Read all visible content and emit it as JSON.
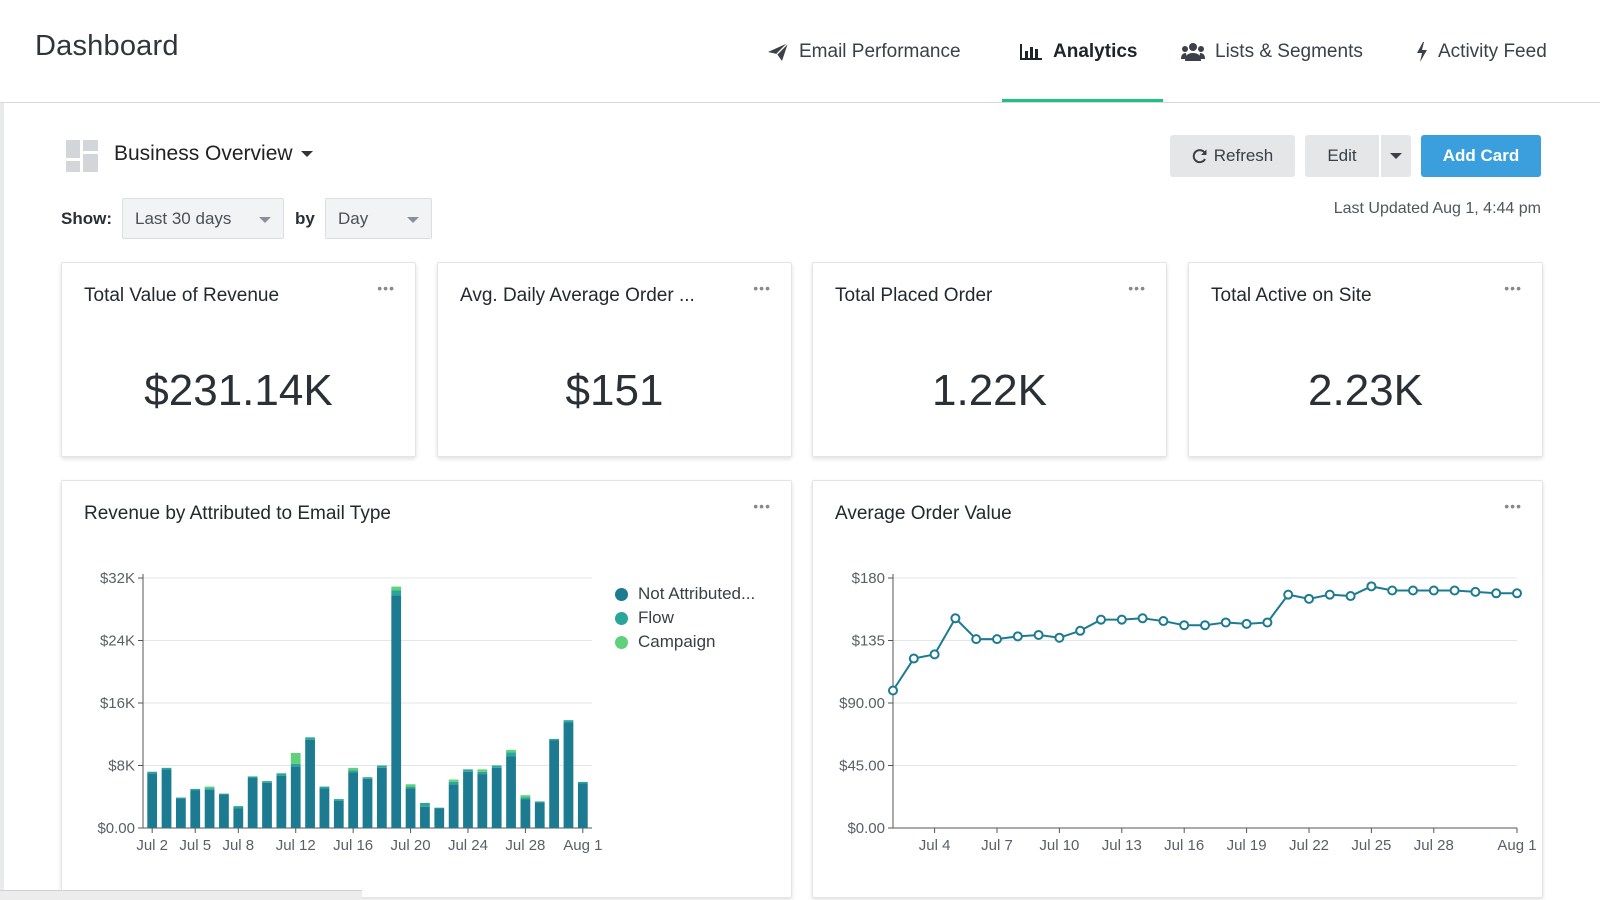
{
  "header": {
    "title": "Dashboard",
    "tabs": [
      {
        "label": "Email Performance",
        "icon": "paper-plane-icon"
      },
      {
        "label": "Analytics",
        "icon": "bar-chart-icon",
        "active": true
      },
      {
        "label": "Lists & Segments",
        "icon": "users-icon"
      },
      {
        "label": "Activity Feed",
        "icon": "lightning-icon"
      }
    ]
  },
  "toolbar": {
    "dashboard_name": "Business Overview",
    "refresh_label": "Refresh",
    "edit_label": "Edit",
    "add_card_label": "Add Card",
    "show_label": "Show:",
    "range_value": "Last 30 days",
    "by_label": "by",
    "granularity_value": "Day",
    "last_updated": "Last Updated Aug 1, 4:44 pm"
  },
  "colors": {
    "accent": "#1bc37e",
    "primary_button": "#3a9fdc",
    "not_attributed": "#1c7b91",
    "flow": "#2aa59a",
    "campaign": "#5fd17a",
    "line": "#1c7b91"
  },
  "metrics": [
    {
      "title": "Total Value of Revenue",
      "value": "$231.14K"
    },
    {
      "title": "Avg. Daily Average Order ...",
      "value": "$151"
    },
    {
      "title": "Total Placed Order",
      "value": "1.22K"
    },
    {
      "title": "Total Active on Site",
      "value": "2.23K"
    }
  ],
  "charts": {
    "revenue_title": "Revenue by Attributed to Email Type",
    "aov_title": "Average Order Value",
    "legend": [
      "Not Attributed...",
      "Flow",
      "Campaign"
    ]
  },
  "chart_data": [
    {
      "type": "bar",
      "stacked": true,
      "title": "Revenue by Attributed to Email Type",
      "ylim": [
        0,
        32000
      ],
      "y_ticks": [
        "$0.00",
        "$8K",
        "$16K",
        "$24K",
        "$32K"
      ],
      "y_tick_values": [
        0,
        8000,
        16000,
        24000,
        32000
      ],
      "x_tick_labels": [
        "Jul 2",
        "Jul 5",
        "Jul 8",
        "Jul 12",
        "Jul 16",
        "Jul 20",
        "Jul 24",
        "Jul 28",
        "Aug 1"
      ],
      "x_tick_indices": [
        0,
        3,
        6,
        10,
        14,
        18,
        22,
        26,
        30
      ],
      "categories": [
        "Jul 2",
        "Jul 3",
        "Jul 4",
        "Jul 5",
        "Jul 6",
        "Jul 7",
        "Jul 8",
        "Jul 9",
        "Jul 10",
        "Jul 11",
        "Jul 12",
        "Jul 13",
        "Jul 14",
        "Jul 15",
        "Jul 16",
        "Jul 17",
        "Jul 18",
        "Jul 19",
        "Jul 20",
        "Jul 21",
        "Jul 22",
        "Jul 23",
        "Jul 24",
        "Jul 25",
        "Jul 26",
        "Jul 27",
        "Jul 28",
        "Jul 29",
        "Jul 30",
        "Jul 31",
        "Aug 1"
      ],
      "series": [
        {
          "name": "Not Attributed...",
          "values": [
            7000,
            7500,
            3800,
            4800,
            4900,
            4300,
            2500,
            6400,
            5800,
            6700,
            7900,
            11300,
            5100,
            3500,
            7100,
            6300,
            7700,
            29800,
            5100,
            2700,
            2500,
            5600,
            7200,
            6900,
            7700,
            9200,
            3700,
            3300,
            11200,
            13500,
            5700
          ]
        },
        {
          "name": "Flow",
          "values": [
            200,
            200,
            100,
            200,
            200,
            100,
            300,
            200,
            200,
            300,
            300,
            300,
            200,
            200,
            300,
            200,
            300,
            600,
            200,
            500,
            100,
            300,
            300,
            300,
            300,
            500,
            200,
            100,
            200,
            300,
            200
          ]
        },
        {
          "name": "Campaign",
          "values": [
            0,
            0,
            0,
            0,
            200,
            0,
            0,
            0,
            0,
            0,
            1400,
            0,
            0,
            0,
            300,
            0,
            0,
            500,
            300,
            0,
            0,
            300,
            0,
            300,
            0,
            300,
            300,
            0,
            0,
            0,
            0
          ]
        }
      ],
      "legend": [
        "Not Attributed...",
        "Flow",
        "Campaign"
      ]
    },
    {
      "type": "line",
      "title": "Average Order Value",
      "ylim": [
        0,
        180
      ],
      "y_ticks": [
        "$0.00",
        "$45.00",
        "$90.00",
        "$135",
        "$180"
      ],
      "y_tick_values": [
        0,
        45,
        90,
        135,
        180
      ],
      "x_tick_labels": [
        "Jul 4",
        "Jul 7",
        "Jul 10",
        "Jul 13",
        "Jul 16",
        "Jul 19",
        "Jul 22",
        "Jul 25",
        "Jul 28",
        "Aug 1"
      ],
      "x_tick_indices": [
        2,
        5,
        8,
        11,
        14,
        17,
        20,
        23,
        26,
        30
      ],
      "categories": [
        "Jul 2",
        "Jul 3",
        "Jul 4",
        "Jul 5",
        "Jul 6",
        "Jul 7",
        "Jul 8",
        "Jul 9",
        "Jul 10",
        "Jul 11",
        "Jul 12",
        "Jul 13",
        "Jul 14",
        "Jul 15",
        "Jul 16",
        "Jul 17",
        "Jul 18",
        "Jul 19",
        "Jul 20",
        "Jul 21",
        "Jul 22",
        "Jul 23",
        "Jul 24",
        "Jul 25",
        "Jul 26",
        "Jul 27",
        "Jul 28",
        "Jul 29",
        "Jul 30",
        "Jul 31",
        "Aug 1"
      ],
      "values": [
        99,
        122,
        125,
        151,
        136,
        136,
        138,
        139,
        137,
        142,
        150,
        150,
        151,
        149,
        146,
        146,
        148,
        147,
        148,
        168,
        165,
        168,
        167,
        174,
        171,
        171,
        171,
        171,
        170,
        169,
        169
      ]
    }
  ]
}
